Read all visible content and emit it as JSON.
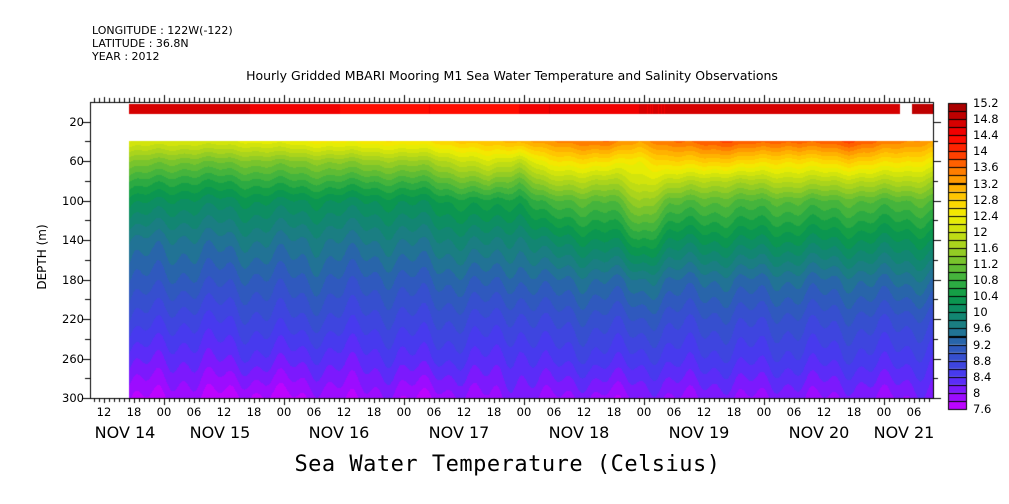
{
  "header": {
    "longitude": "LONGITUDE : 122W(-122)",
    "latitude": "LATITUDE : 36.8N",
    "year": "YEAR : 2012"
  },
  "chart_data": {
    "type": "heatmap",
    "title": "Hourly Gridded MBARI Mooring M1 Sea Water Temperature and Salinity Observations",
    "xlabel": "",
    "ylabel": "DEPTH (m)",
    "colorbar_title": "Sea Water Temperature (Celsius)",
    "x_units": "hours_since_nov14",
    "xlim": [
      9.2,
      177.8
    ],
    "ylim": [
      300,
      0
    ],
    "x_ticks": [
      {
        "h": 12,
        "label": "12"
      },
      {
        "h": 18,
        "label": "18"
      },
      {
        "h": 24,
        "label": "00"
      },
      {
        "h": 30,
        "label": "06"
      },
      {
        "h": 36,
        "label": "12"
      },
      {
        "h": 42,
        "label": "18"
      },
      {
        "h": 48,
        "label": "00"
      },
      {
        "h": 54,
        "label": "06"
      },
      {
        "h": 60,
        "label": "12"
      },
      {
        "h": 66,
        "label": "18"
      },
      {
        "h": 72,
        "label": "00"
      },
      {
        "h": 78,
        "label": "06"
      },
      {
        "h": 84,
        "label": "12"
      },
      {
        "h": 90,
        "label": "18"
      },
      {
        "h": 96,
        "label": "00"
      },
      {
        "h": 102,
        "label": "06"
      },
      {
        "h": 108,
        "label": "12"
      },
      {
        "h": 114,
        "label": "18"
      },
      {
        "h": 120,
        "label": "00"
      },
      {
        "h": 126,
        "label": "06"
      },
      {
        "h": 132,
        "label": "12"
      },
      {
        "h": 138,
        "label": "18"
      },
      {
        "h": 144,
        "label": "00"
      },
      {
        "h": 150,
        "label": "06"
      },
      {
        "h": 156,
        "label": "12"
      },
      {
        "h": 162,
        "label": "18"
      },
      {
        "h": 168,
        "label": "00"
      },
      {
        "h": 174,
        "label": "06"
      }
    ],
    "day_labels": [
      {
        "h": 16.2,
        "label": "NOV 14"
      },
      {
        "h": 35.2,
        "label": "NOV 15"
      },
      {
        "h": 59,
        "label": "NOV 16"
      },
      {
        "h": 83,
        "label": "NOV 17"
      },
      {
        "h": 107,
        "label": "NOV 18"
      },
      {
        "h": 131,
        "label": "NOV 19"
      },
      {
        "h": 155,
        "label": "NOV 20"
      },
      {
        "h": 172,
        "label": "NOV 21"
      }
    ],
    "y_ticks": [
      "20",
      "60",
      "100",
      "140",
      "180",
      "220",
      "260",
      "300"
    ],
    "depths": [
      10,
      40,
      60,
      80,
      100,
      140,
      180,
      220,
      260,
      300
    ],
    "times": [
      17,
      29,
      41,
      53,
      65,
      77,
      89,
      95,
      101,
      113,
      119,
      125,
      137,
      149,
      161,
      173,
      178
    ],
    "values": [
      [
        14.6,
        12.2,
        11.4,
        10.8,
        10.3,
        9.6,
        9.2,
        8.8,
        8.3,
        7.8
      ],
      [
        14.7,
        12.1,
        11.2,
        10.6,
        10.1,
        9.5,
        9.1,
        8.6,
        8.2,
        7.8
      ],
      [
        14.6,
        12.2,
        11.3,
        10.7,
        10.2,
        9.6,
        9.1,
        8.7,
        8.3,
        7.7
      ],
      [
        14.5,
        12.4,
        11.4,
        10.8,
        10.2,
        9.6,
        9.2,
        8.8,
        8.3,
        7.8
      ],
      [
        14.3,
        12.5,
        11.5,
        10.8,
        10.2,
        9.6,
        9.1,
        8.7,
        8.3,
        7.9
      ],
      [
        14.4,
        12.6,
        11.6,
        10.9,
        10.3,
        9.7,
        9.2,
        8.8,
        8.4,
        7.8
      ],
      [
        14.3,
        13.0,
        12.2,
        11.4,
        10.6,
        9.9,
        9.3,
        8.8,
        8.4,
        8.0
      ],
      [
        14.4,
        13.0,
        11.8,
        11.0,
        10.4,
        9.7,
        9.2,
        8.7,
        8.3,
        8.0
      ],
      [
        14.6,
        13.4,
        12.6,
        11.8,
        11.0,
        10.1,
        9.4,
        8.9,
        8.5,
        8.0
      ],
      [
        14.5,
        13.6,
        12.6,
        11.7,
        11.0,
        10.2,
        9.4,
        8.9,
        8.5,
        7.9
      ],
      [
        14.6,
        13.2,
        12.4,
        12.1,
        11.6,
        10.6,
        9.6,
        9.0,
        8.5,
        8.0
      ],
      [
        14.6,
        13.6,
        12.8,
        11.9,
        11.1,
        10.2,
        9.4,
        8.9,
        8.5,
        8.0
      ],
      [
        14.7,
        13.8,
        12.8,
        11.7,
        11.0,
        10.2,
        9.4,
        8.9,
        8.5,
        8.0
      ],
      [
        14.6,
        13.6,
        12.6,
        11.8,
        11.0,
        10.2,
        9.4,
        8.9,
        8.5,
        8.0
      ],
      [
        14.7,
        13.8,
        12.8,
        11.8,
        11.0,
        10.2,
        9.4,
        8.9,
        8.5,
        8.0
      ],
      [
        null,
        13.4,
        12.6,
        11.8,
        11.0,
        10.2,
        9.5,
        8.9,
        8.5,
        8.0
      ],
      [
        14.8,
        13.2,
        12.4,
        11.6,
        11.0,
        10.2,
        9.4,
        8.8,
        8.4,
        8.1
      ]
    ],
    "colorbar": {
      "min": 7.6,
      "max": 15.2,
      "step": 0.2,
      "labels": [
        "15.2",
        "14.8",
        "14.4",
        "14",
        "13.6",
        "13.2",
        "12.8",
        "12.4",
        "12",
        "11.6",
        "11.2",
        "10.8",
        "10.4",
        "10",
        "9.6",
        "9.2",
        "8.8",
        "8.4",
        "8",
        "7.6"
      ],
      "anchors": [
        [
          7.6,
          "#cc00ff"
        ],
        [
          8.0,
          "#8c10ff"
        ],
        [
          8.4,
          "#4b35f5"
        ],
        [
          8.8,
          "#3a4ad8"
        ],
        [
          9.2,
          "#2b5eb5"
        ],
        [
          9.6,
          "#1e7a8a"
        ],
        [
          10.0,
          "#0e8a6a"
        ],
        [
          10.4,
          "#0a9a48"
        ],
        [
          10.8,
          "#38b040"
        ],
        [
          11.2,
          "#6cc030"
        ],
        [
          11.6,
          "#a0d020"
        ],
        [
          12.0,
          "#c8e010"
        ],
        [
          12.4,
          "#f0f000"
        ],
        [
          12.8,
          "#ffd000"
        ],
        [
          13.2,
          "#ffa800"
        ],
        [
          13.6,
          "#ff7000"
        ],
        [
          14.0,
          "#ff3000"
        ],
        [
          14.4,
          "#ff0000"
        ],
        [
          14.8,
          "#c80000"
        ],
        [
          15.2,
          "#a00000"
        ]
      ]
    }
  }
}
